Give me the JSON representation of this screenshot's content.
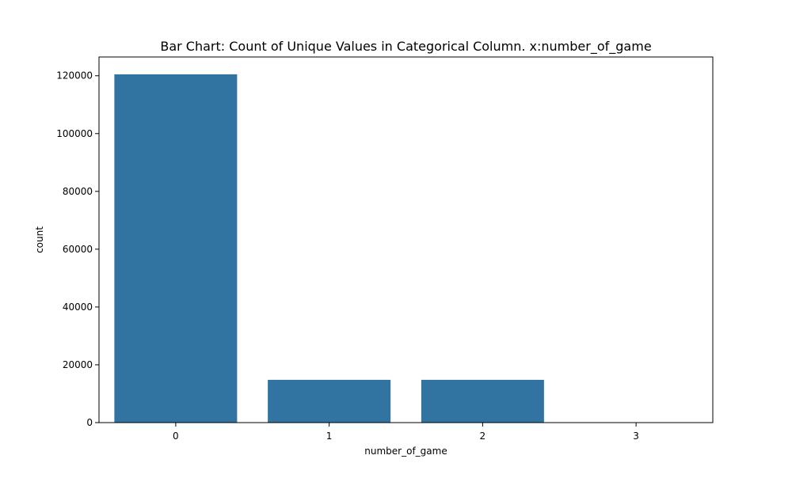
{
  "chart_data": {
    "type": "bar",
    "title": "Bar Chart: Count of Unique Values in Categorical Column. x:number_of_game",
    "xlabel": "number_of_game",
    "ylabel": "count",
    "categories": [
      "0",
      "1",
      "2",
      "3"
    ],
    "values": [
      120500,
      14800,
      14800,
      100
    ],
    "ylim": [
      0,
      126500
    ],
    "yticks": [
      0,
      20000,
      40000,
      60000,
      80000,
      100000,
      120000
    ],
    "ytick_labels": [
      "0",
      "20000",
      "40000",
      "60000",
      "80000",
      "100000",
      "120000"
    ],
    "grid": false,
    "legend": "none",
    "colors": {
      "bar": "#3274a1",
      "axis": "#000000",
      "background": "#ffffff"
    }
  }
}
